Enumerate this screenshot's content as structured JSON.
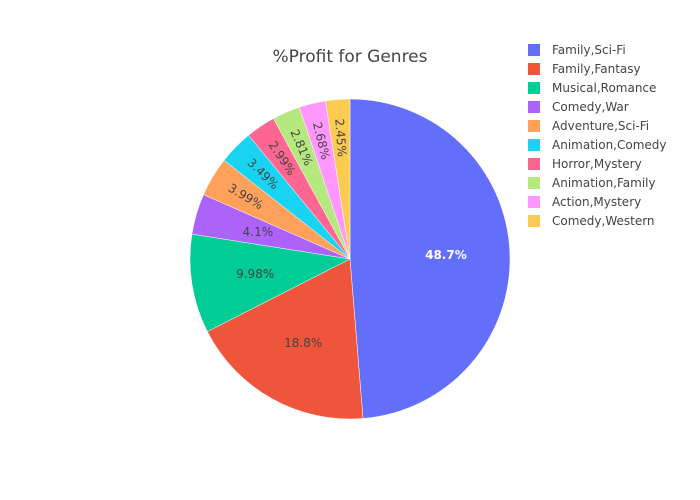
{
  "chart_data": {
    "type": "pie",
    "title": "%Profit for Genres",
    "categories": [
      "Family,Sci-Fi",
      "Family,Fantasy",
      "Musical,Romance",
      "Comedy,War",
      "Adventure,Sci-Fi",
      "Animation,Comedy",
      "Horror,Mystery",
      "Animation,Family",
      "Action,Mystery",
      "Comedy,Western"
    ],
    "values": [
      48.7,
      18.8,
      9.98,
      4.1,
      3.99,
      3.49,
      2.99,
      2.81,
      2.68,
      2.45
    ],
    "labels": [
      "48.7%",
      "18.8%",
      "9.98%",
      "4.1%",
      "3.99%",
      "3.49%",
      "2.99%",
      "2.81%",
      "2.68%",
      "2.45%"
    ],
    "colors": [
      "#636efa",
      "#EF553B",
      "#00cc96",
      "#ab63fa",
      "#FFA15A",
      "#19d3f3",
      "#FF6692",
      "#B6E880",
      "#FF97FF",
      "#FECB52"
    ],
    "label_colors": [
      "#ffffff",
      "#444444",
      "#444444",
      "#444444",
      "#444444",
      "#444444",
      "#444444",
      "#444444",
      "#444444",
      "#444444"
    ],
    "legend_position": "top-right",
    "direction": "clockwise",
    "start": "top"
  }
}
